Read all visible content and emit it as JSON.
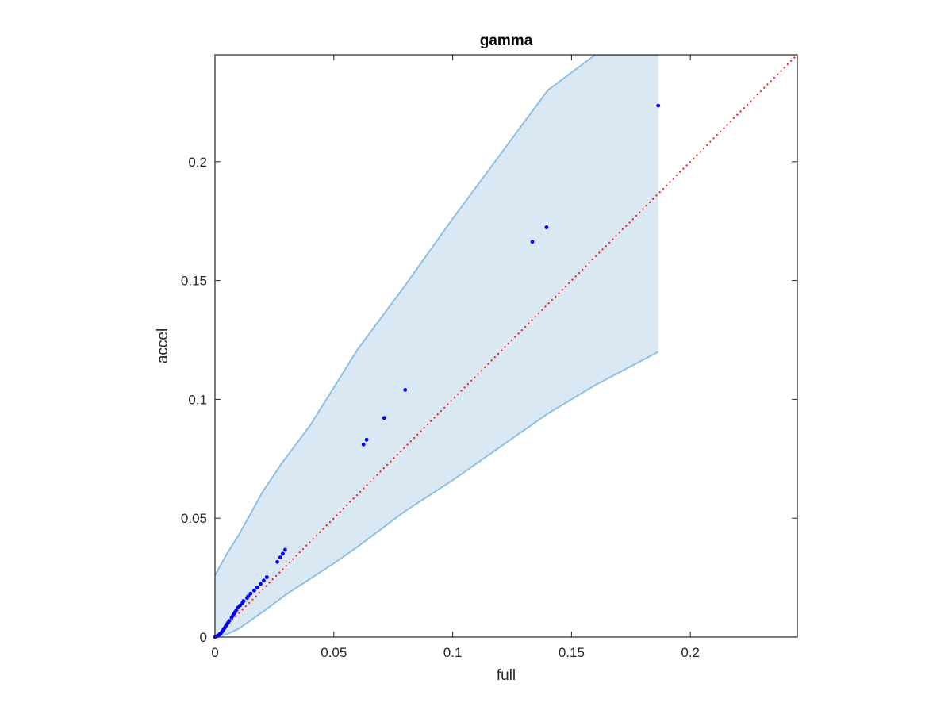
{
  "chart_data": {
    "type": "scatter",
    "title": "gamma",
    "xlabel": "full",
    "ylabel": "accel",
    "xlim": [
      0,
      0.245
    ],
    "ylim": [
      0,
      0.245
    ],
    "xticks": [
      0,
      0.05,
      0.1,
      0.15,
      0.2
    ],
    "xtick_labels": [
      "0",
      "0.05",
      "0.1",
      "0.15",
      "0.2"
    ],
    "yticks": [
      0,
      0.05,
      0.1,
      0.15,
      0.2
    ],
    "ytick_labels": [
      "0",
      "0.05",
      "0.1",
      "0.15",
      "0.2"
    ],
    "grid": false,
    "band": {
      "color": "#dae8f4",
      "edge_color": "#8dc0e2",
      "upper": {
        "x": [
          0,
          0.005,
          0.01,
          0.02,
          0.028,
          0.04,
          0.05,
          0.06,
          0.08,
          0.1,
          0.12,
          0.14,
          0.16,
          0.1865
        ],
        "y": [
          0.026,
          0.035,
          0.043,
          0.061,
          0.073,
          0.089,
          0.105,
          0.121,
          0.148,
          0.176,
          0.203,
          0.23,
          0.245,
          0.245
        ]
      },
      "lower": {
        "x": [
          0,
          0.005,
          0.01,
          0.02,
          0.03,
          0.05,
          0.06,
          0.08,
          0.1,
          0.12,
          0.14,
          0.16,
          0.1865
        ],
        "y": [
          0,
          0.0012,
          0.0035,
          0.0105,
          0.018,
          0.031,
          0.038,
          0.053,
          0.066,
          0.08,
          0.094,
          0.106,
          0.12
        ]
      }
    },
    "reference_line": {
      "x": [
        0,
        0.245
      ],
      "y": [
        0,
        0.245
      ],
      "color": "#e8231f",
      "style": "dotted"
    },
    "series": [
      {
        "color": "#0000ff",
        "x": [
          0,
          0.0005,
          0.001,
          0.0015,
          0.002,
          0.0025,
          0.003,
          0.0035,
          0.004,
          0.0045,
          0.005,
          0.0055,
          0.006,
          0.007,
          0.0075,
          0.008,
          0.0085,
          0.009,
          0.0095,
          0.0105,
          0.0115,
          0.012,
          0.0135,
          0.014,
          0.015,
          0.0165,
          0.0178,
          0.0192,
          0.0205,
          0.0218,
          0.0262,
          0.0275,
          0.0285,
          0.0295,
          0.0625,
          0.0638,
          0.0712,
          0.08,
          0.1335,
          0.1395,
          0.1865
        ],
        "y": [
          0,
          0.0003,
          0.0005,
          0.0008,
          0.0012,
          0.0017,
          0.0023,
          0.003,
          0.0038,
          0.0046,
          0.0053,
          0.006,
          0.0068,
          0.0082,
          0.009,
          0.0098,
          0.0106,
          0.0114,
          0.0124,
          0.0133,
          0.0143,
          0.0152,
          0.0165,
          0.0172,
          0.0183,
          0.0196,
          0.0209,
          0.0224,
          0.0238,
          0.0252,
          0.0316,
          0.0335,
          0.0351,
          0.0367,
          0.081,
          0.083,
          0.0922,
          0.104,
          0.1663,
          0.1724,
          0.2236
        ]
      }
    ]
  }
}
